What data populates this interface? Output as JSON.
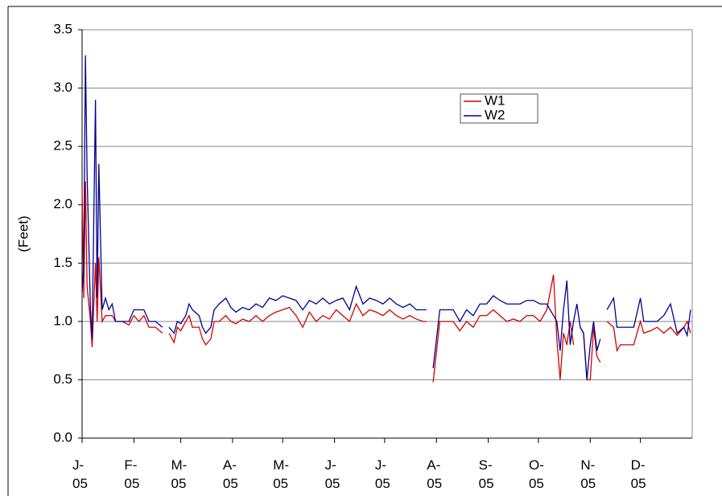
{
  "chart_data": {
    "type": "line",
    "ylabel": "(Feet)",
    "x": [
      0,
      1,
      2,
      3,
      5,
      6,
      8,
      9,
      10,
      12,
      14,
      16,
      18,
      20,
      24,
      28,
      31,
      34,
      37,
      40,
      44,
      48,
      50,
      52,
      55,
      57,
      59,
      62,
      64,
      66,
      70,
      72,
      74,
      77,
      79,
      82,
      86,
      89,
      92,
      96,
      100,
      104,
      108,
      112,
      116,
      120,
      124,
      128,
      132,
      136,
      140,
      144,
      148,
      152,
      156,
      160,
      164,
      168,
      172,
      176,
      180,
      184,
      188,
      192,
      196,
      200,
      204,
      206,
      208,
      210,
      214,
      218,
      222,
      226,
      230,
      234,
      238,
      242,
      246,
      250,
      254,
      258,
      262,
      266,
      270,
      274,
      278,
      282,
      284,
      286,
      288,
      290,
      292,
      294,
      296,
      298,
      300,
      302,
      304,
      306,
      308,
      310,
      312,
      314,
      318,
      320,
      322,
      326,
      330,
      334,
      336,
      340,
      344,
      348,
      352,
      356,
      360,
      362,
      364
    ],
    "series": [
      {
        "name": "W1",
        "color": "#d40000",
        "values": [
          2.15,
          1.2,
          2.2,
          1.3,
          1.0,
          0.78,
          1.5,
          1.0,
          1.55,
          1.0,
          1.05,
          1.05,
          1.05,
          1.0,
          1.0,
          0.97,
          1.05,
          1.0,
          1.05,
          0.95,
          0.95,
          0.9,
          null,
          0.9,
          0.82,
          0.95,
          0.92,
          1.0,
          1.05,
          0.95,
          0.95,
          0.85,
          0.8,
          0.85,
          1.0,
          1.0,
          1.05,
          1.0,
          0.98,
          1.02,
          1.0,
          1.05,
          1.0,
          1.05,
          1.08,
          1.1,
          1.12,
          1.05,
          0.95,
          1.08,
          1.0,
          1.05,
          1.02,
          1.1,
          1.05,
          1.0,
          1.15,
          1.05,
          1.1,
          1.08,
          1.05,
          1.1,
          1.05,
          1.02,
          1.05,
          1.02,
          1.0,
          1.0,
          null,
          0.48,
          1.0,
          1.0,
          1.0,
          0.92,
          1.0,
          0.95,
          1.05,
          1.05,
          1.1,
          1.05,
          1.0,
          1.02,
          1.0,
          1.05,
          1.05,
          1.0,
          1.1,
          1.4,
          0.85,
          0.5,
          0.9,
          0.8,
          1.0,
          0.8,
          null,
          0.95,
          0.9,
          0.5,
          0.5,
          0.95,
          0.7,
          0.65,
          null,
          1.0,
          0.95,
          0.75,
          0.8,
          0.8,
          0.8,
          1.0,
          0.9,
          0.92,
          0.95,
          0.9,
          0.95,
          0.88,
          0.95,
          1.0,
          0.9
        ]
      },
      {
        "name": "W2",
        "color": "#000090",
        "values": [
          1.25,
          1.5,
          3.28,
          2.25,
          1.1,
          0.85,
          2.9,
          1.2,
          2.35,
          1.1,
          1.2,
          1.1,
          1.15,
          1.0,
          1.0,
          1.0,
          1.1,
          1.1,
          1.1,
          1.0,
          1.0,
          0.95,
          null,
          0.95,
          0.9,
          1.0,
          0.98,
          1.05,
          1.15,
          1.1,
          1.05,
          0.95,
          0.9,
          0.95,
          1.1,
          1.15,
          1.2,
          1.12,
          1.08,
          1.12,
          1.1,
          1.15,
          1.12,
          1.2,
          1.18,
          1.22,
          1.2,
          1.18,
          1.1,
          1.18,
          1.15,
          1.2,
          1.15,
          1.18,
          1.2,
          1.1,
          1.3,
          1.15,
          1.2,
          1.18,
          1.15,
          1.2,
          1.15,
          1.12,
          1.15,
          1.1,
          1.1,
          1.1,
          null,
          0.6,
          1.1,
          1.1,
          1.1,
          1.0,
          1.1,
          1.05,
          1.15,
          1.15,
          1.22,
          1.18,
          1.15,
          1.15,
          1.15,
          1.18,
          1.18,
          1.15,
          1.15,
          1.05,
          1.0,
          0.75,
          1.1,
          1.35,
          0.8,
          1.0,
          1.15,
          0.95,
          0.9,
          0.5,
          0.8,
          1.0,
          0.75,
          0.85,
          null,
          1.1,
          1.2,
          0.95,
          0.95,
          0.95,
          0.95,
          1.2,
          1.0,
          1.0,
          1.0,
          1.05,
          1.15,
          0.9,
          0.95,
          0.88,
          1.1
        ]
      }
    ],
    "xlim": [
      0,
      365
    ],
    "xticks": [
      {
        "value": 0,
        "label": "J-05"
      },
      {
        "value": 31,
        "label": "F-05"
      },
      {
        "value": 59,
        "label": "M-05"
      },
      {
        "value": 90,
        "label": "A-05"
      },
      {
        "value": 120,
        "label": "M-05"
      },
      {
        "value": 151,
        "label": "J-05"
      },
      {
        "value": 181,
        "label": "J-05"
      },
      {
        "value": 212,
        "label": "A-05"
      },
      {
        "value": 243,
        "label": "S-05"
      },
      {
        "value": 273,
        "label": "O-05"
      },
      {
        "value": 304,
        "label": "N-05"
      },
      {
        "value": 334,
        "label": "D-05"
      }
    ],
    "ylim": [
      0,
      3.5
    ],
    "yticks": [
      {
        "value": 0,
        "label": "0.0"
      },
      0.5,
      {
        "value": 1,
        "label": "1.0"
      },
      1.5,
      {
        "value": 2,
        "label": "2.0"
      },
      2.5,
      {
        "value": 3,
        "label": "3.0"
      },
      3.5
    ],
    "grid": true,
    "legend_position": "upper-right"
  }
}
